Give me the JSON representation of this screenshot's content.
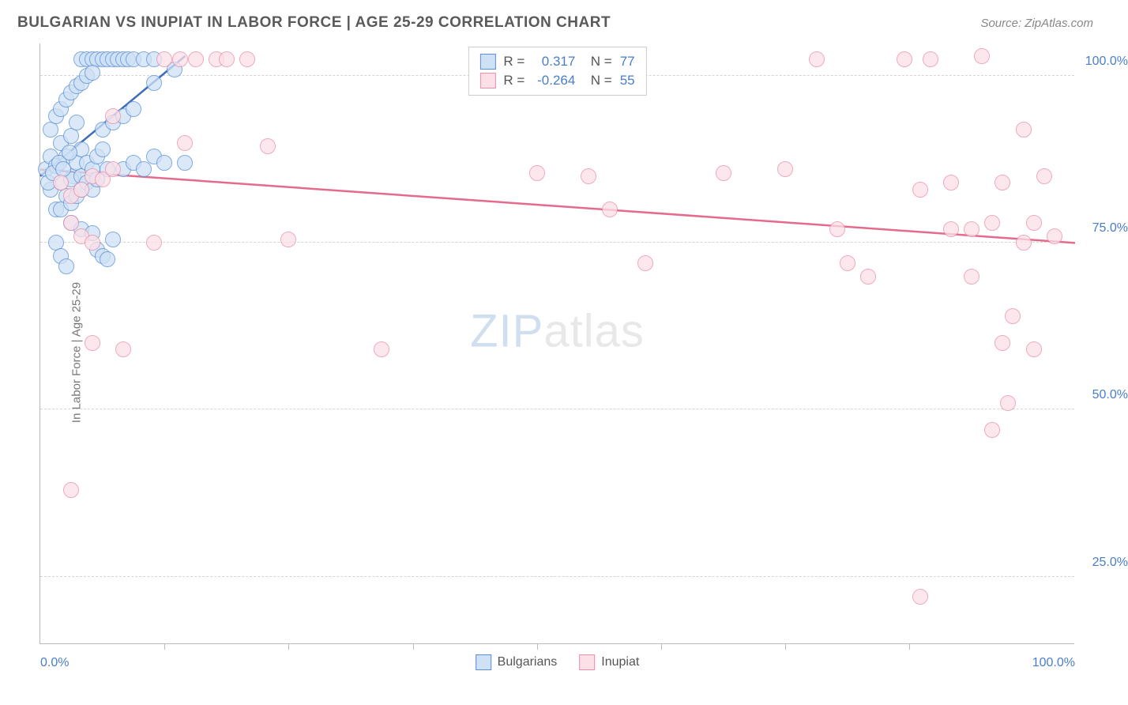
{
  "title": "BULGARIAN VS INUPIAT IN LABOR FORCE | AGE 25-29 CORRELATION CHART",
  "source": "Source: ZipAtlas.com",
  "ylabel": "In Labor Force | Age 25-29",
  "watermark_zip": "ZIP",
  "watermark_atlas": "atlas",
  "chart": {
    "type": "scatter",
    "xlim": [
      0,
      100
    ],
    "ylim": [
      15,
      105
    ],
    "yticks": [
      {
        "v": 25,
        "label": "25.0%"
      },
      {
        "v": 50,
        "label": "50.0%"
      },
      {
        "v": 75,
        "label": "75.0%"
      },
      {
        "v": 100,
        "label": "100.0%"
      }
    ],
    "xticks_minor": [
      12,
      24,
      36,
      48,
      60,
      72,
      84
    ],
    "xticks_labeled": [
      {
        "v": 0,
        "label": "0.0%"
      },
      {
        "v": 100,
        "label": "100.0%"
      }
    ],
    "grid_color": "#d5d5d5",
    "background_color": "#ffffff",
    "marker_radius": 10,
    "marker_stroke_width": 1.5,
    "series": [
      {
        "name": "Bulgarians",
        "fill": "#cfe1f5",
        "stroke": "#5a8fd6",
        "R": "0.317",
        "N": "77",
        "trend": {
          "x1": 0,
          "y1": 85,
          "x2": 14,
          "y2": 103,
          "color": "#3d6db8",
          "width": 2.5
        },
        "points": [
          [
            0.5,
            86
          ],
          [
            1,
            88
          ],
          [
            1.5,
            86.5
          ],
          [
            2,
            90
          ],
          [
            2.5,
            88
          ],
          [
            3,
            91
          ],
          [
            3.2,
            85
          ],
          [
            3.5,
            93
          ],
          [
            4,
            102.5
          ],
          [
            4.5,
            102.5
          ],
          [
            5,
            102.5
          ],
          [
            5.5,
            102.5
          ],
          [
            6,
            102.5
          ],
          [
            6.5,
            102.5
          ],
          [
            7,
            102.5
          ],
          [
            7.5,
            102.5
          ],
          [
            8,
            102.5
          ],
          [
            8.5,
            102.5
          ],
          [
            9,
            102.5
          ],
          [
            10,
            102.5
          ],
          [
            11,
            102.5
          ],
          [
            1,
            83
          ],
          [
            1.5,
            80
          ],
          [
            2,
            84
          ],
          [
            2.5,
            82
          ],
          [
            3,
            84.5
          ],
          [
            3.5,
            87
          ],
          [
            4,
            89
          ],
          [
            0.8,
            84
          ],
          [
            1.2,
            85.5
          ],
          [
            1.8,
            87
          ],
          [
            2.2,
            86
          ],
          [
            2.8,
            88.5
          ],
          [
            1,
            92
          ],
          [
            1.5,
            94
          ],
          [
            2,
            95
          ],
          [
            2.5,
            96.5
          ],
          [
            3,
            97.5
          ],
          [
            3.5,
            98.5
          ],
          [
            4,
            99
          ],
          [
            4.5,
            100
          ],
          [
            5,
            100.5
          ],
          [
            2,
            80
          ],
          [
            3,
            78
          ],
          [
            4,
            77
          ],
          [
            5,
            76.5
          ],
          [
            5.5,
            74
          ],
          [
            6,
            73
          ],
          [
            6.5,
            72.5
          ],
          [
            7,
            75.5
          ],
          [
            1.5,
            75
          ],
          [
            2,
            73
          ],
          [
            2.5,
            71.5
          ],
          [
            4,
            85
          ],
          [
            4.5,
            87
          ],
          [
            5,
            86
          ],
          [
            5.5,
            88
          ],
          [
            6,
            89
          ],
          [
            6.5,
            86
          ],
          [
            8,
            86
          ],
          [
            9,
            87
          ],
          [
            10,
            86
          ],
          [
            11,
            88
          ],
          [
            12,
            87
          ],
          [
            14,
            87
          ],
          [
            3,
            81
          ],
          [
            3.5,
            82
          ],
          [
            4,
            83
          ],
          [
            4.5,
            84
          ],
          [
            5,
            83
          ],
          [
            5.5,
            84.5
          ],
          [
            6,
            92
          ],
          [
            7,
            93
          ],
          [
            8,
            94
          ],
          [
            9,
            95
          ],
          [
            11,
            99
          ],
          [
            13,
            101
          ]
        ]
      },
      {
        "name": "Inupiat",
        "fill": "#fbe0e8",
        "stroke": "#e98fa8",
        "R": "-0.264",
        "N": "55",
        "trend": {
          "x1": 0,
          "y1": 86,
          "x2": 100,
          "y2": 75,
          "color": "#e56b8e",
          "width": 2.5
        },
        "points": [
          [
            2,
            84
          ],
          [
            3,
            82
          ],
          [
            4,
            83
          ],
          [
            5,
            85
          ],
          [
            6,
            84.5
          ],
          [
            7,
            86
          ],
          [
            3,
            78
          ],
          [
            4,
            76
          ],
          [
            5,
            75
          ],
          [
            12,
            102.5
          ],
          [
            13.5,
            102.5
          ],
          [
            15,
            102.5
          ],
          [
            17,
            102.5
          ],
          [
            18,
            102.5
          ],
          [
            20,
            102.5
          ],
          [
            5,
            60
          ],
          [
            8,
            59
          ],
          [
            7,
            94
          ],
          [
            3,
            38
          ],
          [
            11,
            75
          ],
          [
            14,
            90
          ],
          [
            22,
            89.5
          ],
          [
            24,
            75.5
          ],
          [
            33,
            59
          ],
          [
            48,
            85.5
          ],
          [
            55,
            80
          ],
          [
            53,
            85
          ],
          [
            58.5,
            72
          ],
          [
            66,
            85.5
          ],
          [
            72,
            86
          ],
          [
            75,
            102.5
          ],
          [
            77,
            77
          ],
          [
            78,
            72
          ],
          [
            80,
            70
          ],
          [
            83.5,
            102.5
          ],
          [
            85,
            83
          ],
          [
            85,
            22
          ],
          [
            86,
            102.5
          ],
          [
            88,
            77
          ],
          [
            88,
            84
          ],
          [
            90,
            77
          ],
          [
            90,
            70
          ],
          [
            91,
            103
          ],
          [
            92,
            47
          ],
          [
            92,
            78
          ],
          [
            93,
            60
          ],
          [
            93,
            84
          ],
          [
            93.5,
            51
          ],
          [
            94,
            64
          ],
          [
            95,
            75
          ],
          [
            95,
            92
          ],
          [
            96,
            78
          ],
          [
            96,
            59
          ],
          [
            97,
            85
          ],
          [
            98,
            76
          ]
        ]
      }
    ],
    "legend_bottom": [
      {
        "label": "Bulgarians",
        "fill": "#cfe1f5",
        "stroke": "#5a8fd6"
      },
      {
        "label": "Inupiat",
        "fill": "#fbe0e8",
        "stroke": "#e98fa8"
      }
    ]
  }
}
